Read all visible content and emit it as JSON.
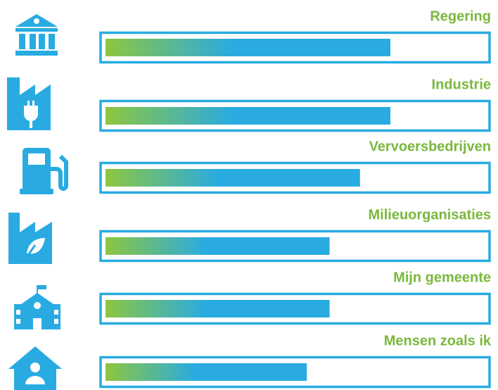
{
  "chart_data": {
    "type": "bar",
    "orientation": "horizontal",
    "categories": [
      "Regering",
      "Industrie",
      "Vervoersbedrijven",
      "Milieuorganisaties",
      "Mijn gemeente",
      "Mensen zoals ik"
    ],
    "values": [
      75,
      75,
      67,
      59,
      59,
      53
    ],
    "xlim": [
      0,
      100
    ],
    "color": "#29abe2",
    "gradient_start_color": "#8dc63f",
    "label_color": "#7ab83c"
  }
}
